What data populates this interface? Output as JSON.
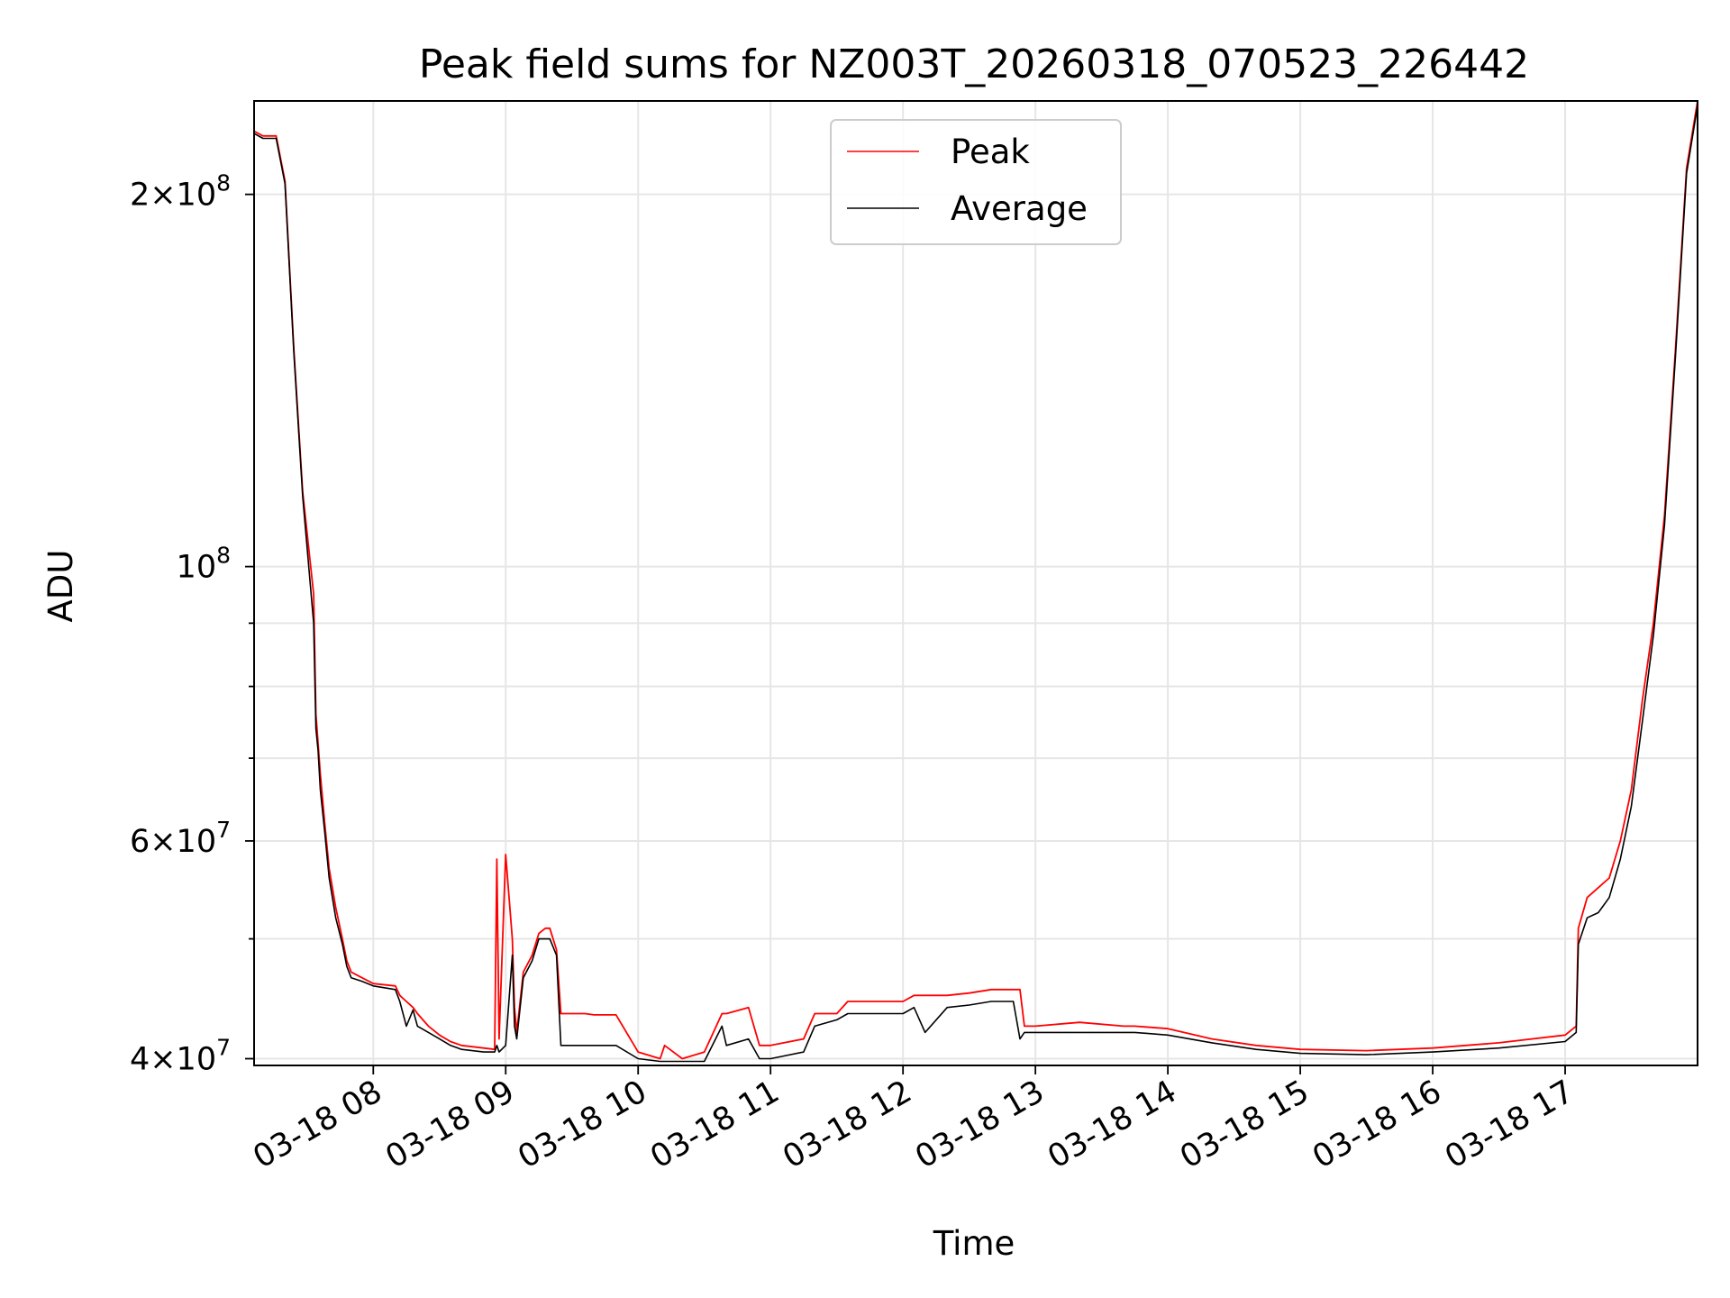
{
  "chart_data": {
    "type": "line",
    "title": "Peak field sums for NZ003T_20260318_070523_226442",
    "xlabel": "Time",
    "ylabel": "ADU",
    "y_scale": "log",
    "grid": true,
    "legend_position": "upper center",
    "xlim": [
      "2026-03-18 07:06",
      "2026-03-18 18:00"
    ],
    "ylim": [
      39500000,
      238000000
    ],
    "x_ticks": [
      {
        "value": "2026-03-18 08:00",
        "label": "03-18 08"
      },
      {
        "value": "2026-03-18 09:00",
        "label": "03-18 09"
      },
      {
        "value": "2026-03-18 10:00",
        "label": "03-18 10"
      },
      {
        "value": "2026-03-18 11:00",
        "label": "03-18 11"
      },
      {
        "value": "2026-03-18 12:00",
        "label": "03-18 12"
      },
      {
        "value": "2026-03-18 13:00",
        "label": "03-18 13"
      },
      {
        "value": "2026-03-18 14:00",
        "label": "03-18 14"
      },
      {
        "value": "2026-03-18 15:00",
        "label": "03-18 15"
      },
      {
        "value": "2026-03-18 16:00",
        "label": "03-18 16"
      },
      {
        "value": "2026-03-18 17:00",
        "label": "03-18 17"
      }
    ],
    "y_major_ticks": [
      {
        "value": 40000000,
        "base": "4",
        "exp": "7"
      },
      {
        "value": 60000000,
        "base": "6",
        "exp": "7"
      },
      {
        "value": 100000000,
        "base": "",
        "exp": "8"
      },
      {
        "value": 200000000,
        "base": "2",
        "exp": "8"
      }
    ],
    "y_minor_ticks": [
      50000000,
      70000000,
      80000000,
      90000000
    ],
    "series": [
      {
        "name": "Peak",
        "color": "#ff0000",
        "x": [
          "2026-03-18 07:06",
          "2026-03-18 07:10",
          "2026-03-18 07:16",
          "2026-03-18 07:20",
          "2026-03-18 07:24",
          "2026-03-18 07:28",
          "2026-03-18 07:33",
          "2026-03-18 07:34",
          "2026-03-18 07:35",
          "2026-03-18 07:36",
          "2026-03-18 07:38",
          "2026-03-18 07:40",
          "2026-03-18 07:43",
          "2026-03-18 07:46",
          "2026-03-18 07:48",
          "2026-03-18 07:50",
          "2026-03-18 07:55",
          "2026-03-18 08:00",
          "2026-03-18 08:10",
          "2026-03-18 08:12",
          "2026-03-18 08:15",
          "2026-03-18 08:18",
          "2026-03-18 08:20",
          "2026-03-18 08:25",
          "2026-03-18 08:30",
          "2026-03-18 08:35",
          "2026-03-18 08:40",
          "2026-03-18 08:50",
          "2026-03-18 08:55",
          "2026-03-18 08:56",
          "2026-03-18 08:57",
          "2026-03-18 09:00",
          "2026-03-18 09:03",
          "2026-03-18 09:04",
          "2026-03-18 09:05",
          "2026-03-18 09:08",
          "2026-03-18 09:12",
          "2026-03-18 09:15",
          "2026-03-18 09:18",
          "2026-03-18 09:20",
          "2026-03-18 09:23",
          "2026-03-18 09:25",
          "2026-03-18 09:30",
          "2026-03-18 09:33",
          "2026-03-18 09:36",
          "2026-03-18 09:40",
          "2026-03-18 09:50",
          "2026-03-18 10:00",
          "2026-03-18 10:10",
          "2026-03-18 10:12",
          "2026-03-18 10:20",
          "2026-03-18 10:30",
          "2026-03-18 10:38",
          "2026-03-18 10:40",
          "2026-03-18 10:50",
          "2026-03-18 10:55",
          "2026-03-18 11:00",
          "2026-03-18 11:15",
          "2026-03-18 11:20",
          "2026-03-18 11:30",
          "2026-03-18 11:35",
          "2026-03-18 11:40",
          "2026-03-18 11:50",
          "2026-03-18 12:00",
          "2026-03-18 12:05",
          "2026-03-18 12:10",
          "2026-03-18 12:20",
          "2026-03-18 12:30",
          "2026-03-18 12:40",
          "2026-03-18 12:50",
          "2026-03-18 12:53",
          "2026-03-18 12:55",
          "2026-03-18 13:00",
          "2026-03-18 13:20",
          "2026-03-18 13:40",
          "2026-03-18 13:45",
          "2026-03-18 14:00",
          "2026-03-18 14:20",
          "2026-03-18 14:40",
          "2026-03-18 15:00",
          "2026-03-18 15:30",
          "2026-03-18 16:00",
          "2026-03-18 16:30",
          "2026-03-18 17:00",
          "2026-03-18 17:05",
          "2026-03-18 17:06",
          "2026-03-18 17:10",
          "2026-03-18 17:15",
          "2026-03-18 17:20",
          "2026-03-18 17:25",
          "2026-03-18 17:30",
          "2026-03-18 17:35",
          "2026-03-18 17:40",
          "2026-03-18 17:45",
          "2026-03-18 17:50",
          "2026-03-18 17:55",
          "2026-03-18 18:00"
        ],
        "values": [
          225000000,
          223000000,
          223000000,
          205000000,
          150000000,
          115000000,
          95000000,
          76000000,
          72000000,
          68000000,
          62000000,
          57000000,
          53000000,
          50000000,
          48000000,
          47000000,
          46500000,
          46000000,
          45800000,
          45000000,
          44500000,
          44000000,
          43500000,
          42500000,
          41800000,
          41300000,
          41000000,
          40800000,
          40700000,
          58000000,
          41500000,
          58500000,
          50000000,
          44000000,
          42000000,
          47000000,
          48500000,
          50500000,
          51000000,
          51000000,
          49000000,
          43500000,
          43500000,
          43500000,
          43500000,
          43400000,
          43400000,
          40500000,
          40000000,
          41000000,
          40000000,
          40500000,
          43500000,
          43500000,
          44000000,
          41000000,
          41000000,
          41500000,
          43500000,
          43500000,
          44500000,
          44500000,
          44500000,
          44500000,
          45000000,
          45000000,
          45000000,
          45200000,
          45500000,
          45500000,
          45500000,
          42500000,
          42500000,
          42800000,
          42500000,
          42500000,
          42300000,
          41500000,
          41000000,
          40700000,
          40600000,
          40800000,
          41200000,
          41800000,
          42500000,
          51000000,
          54000000,
          55000000,
          56000000,
          60000000,
          66000000,
          78000000,
          90000000,
          110000000,
          150000000,
          210000000,
          238000000
        ]
      },
      {
        "name": "Average",
        "color": "#000000",
        "x": [
          "2026-03-18 07:06",
          "2026-03-18 07:10",
          "2026-03-18 07:16",
          "2026-03-18 07:20",
          "2026-03-18 07:24",
          "2026-03-18 07:28",
          "2026-03-18 07:33",
          "2026-03-18 07:34",
          "2026-03-18 07:35",
          "2026-03-18 07:36",
          "2026-03-18 07:38",
          "2026-03-18 07:40",
          "2026-03-18 07:43",
          "2026-03-18 07:46",
          "2026-03-18 07:48",
          "2026-03-18 07:50",
          "2026-03-18 07:55",
          "2026-03-18 08:00",
          "2026-03-18 08:10",
          "2026-03-18 08:12",
          "2026-03-18 08:15",
          "2026-03-18 08:18",
          "2026-03-18 08:20",
          "2026-03-18 08:25",
          "2026-03-18 08:30",
          "2026-03-18 08:35",
          "2026-03-18 08:40",
          "2026-03-18 08:50",
          "2026-03-18 08:55",
          "2026-03-18 08:56",
          "2026-03-18 08:57",
          "2026-03-18 09:00",
          "2026-03-18 09:03",
          "2026-03-18 09:04",
          "2026-03-18 09:05",
          "2026-03-18 09:08",
          "2026-03-18 09:12",
          "2026-03-18 09:15",
          "2026-03-18 09:18",
          "2026-03-18 09:20",
          "2026-03-18 09:23",
          "2026-03-18 09:25",
          "2026-03-18 09:30",
          "2026-03-18 09:33",
          "2026-03-18 09:36",
          "2026-03-18 09:40",
          "2026-03-18 09:50",
          "2026-03-18 10:00",
          "2026-03-18 10:10",
          "2026-03-18 10:12",
          "2026-03-18 10:20",
          "2026-03-18 10:30",
          "2026-03-18 10:38",
          "2026-03-18 10:40",
          "2026-03-18 10:50",
          "2026-03-18 10:55",
          "2026-03-18 11:00",
          "2026-03-18 11:15",
          "2026-03-18 11:20",
          "2026-03-18 11:30",
          "2026-03-18 11:35",
          "2026-03-18 11:40",
          "2026-03-18 11:50",
          "2026-03-18 12:00",
          "2026-03-18 12:05",
          "2026-03-18 12:10",
          "2026-03-18 12:20",
          "2026-03-18 12:30",
          "2026-03-18 12:40",
          "2026-03-18 12:50",
          "2026-03-18 12:53",
          "2026-03-18 12:55",
          "2026-03-18 13:00",
          "2026-03-18 13:20",
          "2026-03-18 13:40",
          "2026-03-18 13:45",
          "2026-03-18 14:00",
          "2026-03-18 14:20",
          "2026-03-18 14:40",
          "2026-03-18 15:00",
          "2026-03-18 15:30",
          "2026-03-18 16:00",
          "2026-03-18 16:30",
          "2026-03-18 17:00",
          "2026-03-18 17:05",
          "2026-03-18 17:06",
          "2026-03-18 17:10",
          "2026-03-18 17:15",
          "2026-03-18 17:20",
          "2026-03-18 17:25",
          "2026-03-18 17:30",
          "2026-03-18 17:35",
          "2026-03-18 17:40",
          "2026-03-18 17:45",
          "2026-03-18 17:50",
          "2026-03-18 17:55",
          "2026-03-18 18:00"
        ],
        "values": [
          224000000,
          222000000,
          222000000,
          204000000,
          149000000,
          114000000,
          90000000,
          74000000,
          71000000,
          66000000,
          61000000,
          56000000,
          52000000,
          49500000,
          47500000,
          46500000,
          46200000,
          45800000,
          45500000,
          44500000,
          42500000,
          43800000,
          42500000,
          42000000,
          41500000,
          41000000,
          40700000,
          40500000,
          40500000,
          41000000,
          40500000,
          41000000,
          48500000,
          42500000,
          41500000,
          46500000,
          48000000,
          50000000,
          50000000,
          50000000,
          48500000,
          41000000,
          41000000,
          41000000,
          41000000,
          41000000,
          41000000,
          40000000,
          39800000,
          39800000,
          39800000,
          39800000,
          42500000,
          41000000,
          41500000,
          40000000,
          40000000,
          40500000,
          42500000,
          43000000,
          43500000,
          43500000,
          43500000,
          43500000,
          44000000,
          42000000,
          44000000,
          44200000,
          44500000,
          44500000,
          41500000,
          42000000,
          42000000,
          42000000,
          42000000,
          42000000,
          41800000,
          41200000,
          40700000,
          40400000,
          40300000,
          40500000,
          40800000,
          41300000,
          42000000,
          49500000,
          52000000,
          52500000,
          54000000,
          58000000,
          64000000,
          75000000,
          88000000,
          108000000,
          148000000,
          208000000,
          236000000
        ]
      }
    ]
  }
}
